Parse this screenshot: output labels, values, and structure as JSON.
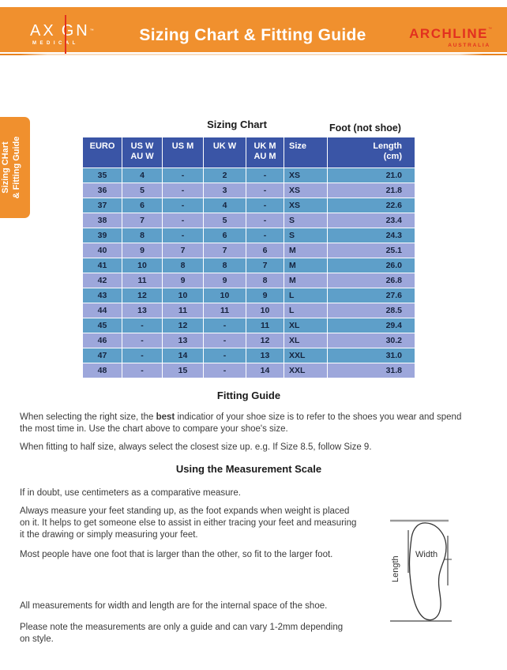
{
  "colors": {
    "accent_orange": "#F0902E",
    "brand_red": "#E2301F",
    "table_header_blue": "#3A55A6",
    "table_row_blue": "#5E9FC9",
    "table_row_periwinkle": "#9DA7DB"
  },
  "header": {
    "brand_left": {
      "name_left": "AX",
      "name_right": "GN",
      "tm": "™",
      "subtitle": "MEDICAL"
    },
    "title": "Sizing Chart & Fitting Guide",
    "brand_right": {
      "name": "ARCHLINE",
      "tm": "™",
      "subtitle": "AUSTRALIA"
    }
  },
  "side_tab": {
    "line1": "Sizing CHart",
    "line2": "& Fitting Guide"
  },
  "sizing_chart": {
    "heading": "Sizing Chart",
    "foot_label": "Foot (not shoe)",
    "columns": [
      [
        "EURO",
        ""
      ],
      [
        "US W",
        "AU W"
      ],
      [
        "US M",
        ""
      ],
      [
        "UK W",
        ""
      ],
      [
        "UK M",
        "AU M"
      ],
      [
        "Size",
        ""
      ],
      [
        "Length",
        "(cm)"
      ]
    ],
    "rows": [
      [
        "35",
        "4",
        "-",
        "2",
        "-",
        "XS",
        "21.0"
      ],
      [
        "36",
        "5",
        "-",
        "3",
        "-",
        "XS",
        "21.8"
      ],
      [
        "37",
        "6",
        "-",
        "4",
        "-",
        "XS",
        "22.6"
      ],
      [
        "38",
        "7",
        "-",
        "5",
        "-",
        "S",
        "23.4"
      ],
      [
        "39",
        "8",
        "-",
        "6",
        "-",
        "S",
        "24.3"
      ],
      [
        "40",
        "9",
        "7",
        "7",
        "6",
        "M",
        "25.1"
      ],
      [
        "41",
        "10",
        "8",
        "8",
        "7",
        "M",
        "26.0"
      ],
      [
        "42",
        "11",
        "9",
        "9",
        "8",
        "M",
        "26.8"
      ],
      [
        "43",
        "12",
        "10",
        "10",
        "9",
        "L",
        "27.6"
      ],
      [
        "44",
        "13",
        "11",
        "11",
        "10",
        "L",
        "28.5"
      ],
      [
        "45",
        "-",
        "12",
        "-",
        "11",
        "XL",
        "29.4"
      ],
      [
        "46",
        "-",
        "13",
        "-",
        "12",
        "XL",
        "30.2"
      ],
      [
        "47",
        "-",
        "14",
        "-",
        "13",
        "XXL",
        "31.0"
      ],
      [
        "48",
        "-",
        "15",
        "-",
        "14",
        "XXL",
        "31.8"
      ]
    ]
  },
  "fitting_guide": {
    "heading": "Fitting Guide",
    "p1": {
      "line1_pre": "When selecting the right size, the ",
      "line1_bold": "best",
      "line1_post": " indicatior of your shoe size is to refer to the shoes you wear and spend",
      "line2": "the most time in. Use the chart above to compare your shoe's size."
    },
    "p2": "When fitting to half size, always select the closest size up. e.g. If Size 8.5, follow Size 9."
  },
  "measurement_scale": {
    "heading": "Using the Measurement Scale",
    "p3": "If in doubt, use centimeters as a comparative measure.",
    "p4": {
      "line1": "Always measure your feet standing up, as the foot expands when weight is placed",
      "line2": "on it. It helps to get someone else to assist in either tracing your feet and measuring",
      "line3": "it the drawing or simply measuring your feet."
    },
    "p5": "Most people have one foot that is larger than the other, so fit to the larger foot.",
    "p6": "All measurements for width and length are for the internal space of the shoe.",
    "p7": {
      "line1": "Please note the measurements are only a guide and can vary 1-2mm depending",
      "line2": "on style."
    }
  },
  "diagram": {
    "width_label": "Width",
    "length_label": "Length"
  }
}
